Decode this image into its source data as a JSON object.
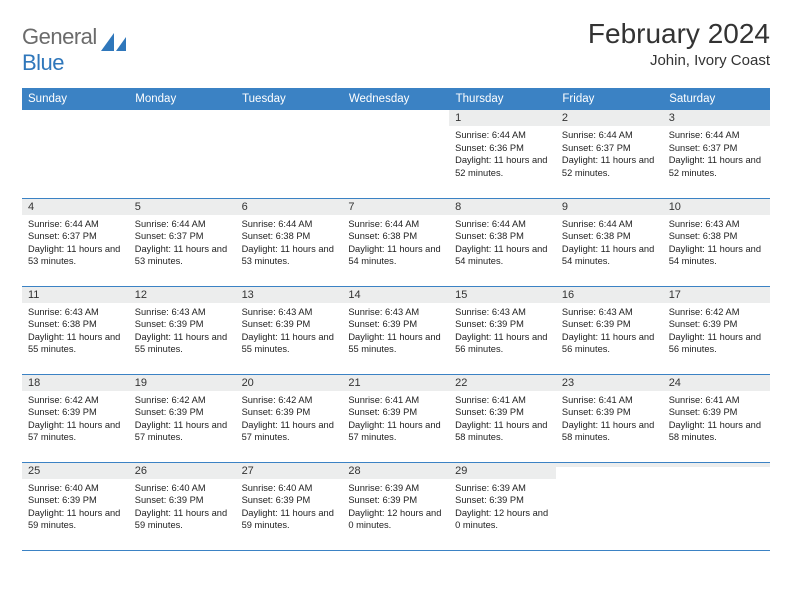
{
  "logo": {
    "word1": "General",
    "word2": "Blue"
  },
  "title": "February 2024",
  "location": "Johin, Ivory Coast",
  "colors": {
    "header_bg": "#3b82c4",
    "header_fg": "#ffffff",
    "daynum_bg": "#eceded",
    "border": "#3b82c4",
    "logo_gray": "#6b6b6b",
    "logo_blue": "#2f77bb"
  },
  "weekdays": [
    "Sunday",
    "Monday",
    "Tuesday",
    "Wednesday",
    "Thursday",
    "Friday",
    "Saturday"
  ],
  "weeks": [
    [
      {
        "n": "",
        "sr": "",
        "ss": "",
        "dl": ""
      },
      {
        "n": "",
        "sr": "",
        "ss": "",
        "dl": ""
      },
      {
        "n": "",
        "sr": "",
        "ss": "",
        "dl": ""
      },
      {
        "n": "",
        "sr": "",
        "ss": "",
        "dl": ""
      },
      {
        "n": "1",
        "sr": "Sunrise: 6:44 AM",
        "ss": "Sunset: 6:36 PM",
        "dl": "Daylight: 11 hours and 52 minutes."
      },
      {
        "n": "2",
        "sr": "Sunrise: 6:44 AM",
        "ss": "Sunset: 6:37 PM",
        "dl": "Daylight: 11 hours and 52 minutes."
      },
      {
        "n": "3",
        "sr": "Sunrise: 6:44 AM",
        "ss": "Sunset: 6:37 PM",
        "dl": "Daylight: 11 hours and 52 minutes."
      }
    ],
    [
      {
        "n": "4",
        "sr": "Sunrise: 6:44 AM",
        "ss": "Sunset: 6:37 PM",
        "dl": "Daylight: 11 hours and 53 minutes."
      },
      {
        "n": "5",
        "sr": "Sunrise: 6:44 AM",
        "ss": "Sunset: 6:37 PM",
        "dl": "Daylight: 11 hours and 53 minutes."
      },
      {
        "n": "6",
        "sr": "Sunrise: 6:44 AM",
        "ss": "Sunset: 6:38 PM",
        "dl": "Daylight: 11 hours and 53 minutes."
      },
      {
        "n": "7",
        "sr": "Sunrise: 6:44 AM",
        "ss": "Sunset: 6:38 PM",
        "dl": "Daylight: 11 hours and 54 minutes."
      },
      {
        "n": "8",
        "sr": "Sunrise: 6:44 AM",
        "ss": "Sunset: 6:38 PM",
        "dl": "Daylight: 11 hours and 54 minutes."
      },
      {
        "n": "9",
        "sr": "Sunrise: 6:44 AM",
        "ss": "Sunset: 6:38 PM",
        "dl": "Daylight: 11 hours and 54 minutes."
      },
      {
        "n": "10",
        "sr": "Sunrise: 6:43 AM",
        "ss": "Sunset: 6:38 PM",
        "dl": "Daylight: 11 hours and 54 minutes."
      }
    ],
    [
      {
        "n": "11",
        "sr": "Sunrise: 6:43 AM",
        "ss": "Sunset: 6:38 PM",
        "dl": "Daylight: 11 hours and 55 minutes."
      },
      {
        "n": "12",
        "sr": "Sunrise: 6:43 AM",
        "ss": "Sunset: 6:39 PM",
        "dl": "Daylight: 11 hours and 55 minutes."
      },
      {
        "n": "13",
        "sr": "Sunrise: 6:43 AM",
        "ss": "Sunset: 6:39 PM",
        "dl": "Daylight: 11 hours and 55 minutes."
      },
      {
        "n": "14",
        "sr": "Sunrise: 6:43 AM",
        "ss": "Sunset: 6:39 PM",
        "dl": "Daylight: 11 hours and 55 minutes."
      },
      {
        "n": "15",
        "sr": "Sunrise: 6:43 AM",
        "ss": "Sunset: 6:39 PM",
        "dl": "Daylight: 11 hours and 56 minutes."
      },
      {
        "n": "16",
        "sr": "Sunrise: 6:43 AM",
        "ss": "Sunset: 6:39 PM",
        "dl": "Daylight: 11 hours and 56 minutes."
      },
      {
        "n": "17",
        "sr": "Sunrise: 6:42 AM",
        "ss": "Sunset: 6:39 PM",
        "dl": "Daylight: 11 hours and 56 minutes."
      }
    ],
    [
      {
        "n": "18",
        "sr": "Sunrise: 6:42 AM",
        "ss": "Sunset: 6:39 PM",
        "dl": "Daylight: 11 hours and 57 minutes."
      },
      {
        "n": "19",
        "sr": "Sunrise: 6:42 AM",
        "ss": "Sunset: 6:39 PM",
        "dl": "Daylight: 11 hours and 57 minutes."
      },
      {
        "n": "20",
        "sr": "Sunrise: 6:42 AM",
        "ss": "Sunset: 6:39 PM",
        "dl": "Daylight: 11 hours and 57 minutes."
      },
      {
        "n": "21",
        "sr": "Sunrise: 6:41 AM",
        "ss": "Sunset: 6:39 PM",
        "dl": "Daylight: 11 hours and 57 minutes."
      },
      {
        "n": "22",
        "sr": "Sunrise: 6:41 AM",
        "ss": "Sunset: 6:39 PM",
        "dl": "Daylight: 11 hours and 58 minutes."
      },
      {
        "n": "23",
        "sr": "Sunrise: 6:41 AM",
        "ss": "Sunset: 6:39 PM",
        "dl": "Daylight: 11 hours and 58 minutes."
      },
      {
        "n": "24",
        "sr": "Sunrise: 6:41 AM",
        "ss": "Sunset: 6:39 PM",
        "dl": "Daylight: 11 hours and 58 minutes."
      }
    ],
    [
      {
        "n": "25",
        "sr": "Sunrise: 6:40 AM",
        "ss": "Sunset: 6:39 PM",
        "dl": "Daylight: 11 hours and 59 minutes."
      },
      {
        "n": "26",
        "sr": "Sunrise: 6:40 AM",
        "ss": "Sunset: 6:39 PM",
        "dl": "Daylight: 11 hours and 59 minutes."
      },
      {
        "n": "27",
        "sr": "Sunrise: 6:40 AM",
        "ss": "Sunset: 6:39 PM",
        "dl": "Daylight: 11 hours and 59 minutes."
      },
      {
        "n": "28",
        "sr": "Sunrise: 6:39 AM",
        "ss": "Sunset: 6:39 PM",
        "dl": "Daylight: 12 hours and 0 minutes."
      },
      {
        "n": "29",
        "sr": "Sunrise: 6:39 AM",
        "ss": "Sunset: 6:39 PM",
        "dl": "Daylight: 12 hours and 0 minutes."
      },
      {
        "n": "",
        "sr": "",
        "ss": "",
        "dl": ""
      },
      {
        "n": "",
        "sr": "",
        "ss": "",
        "dl": ""
      }
    ]
  ]
}
